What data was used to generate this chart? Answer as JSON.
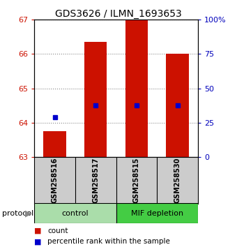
{
  "title": "GDS3626 / ILMN_1693653",
  "samples": [
    "GSM258516",
    "GSM258517",
    "GSM258515",
    "GSM258530"
  ],
  "bar_bottoms": [
    63,
    63,
    63,
    63
  ],
  "bar_tops": [
    63.75,
    66.35,
    67.0,
    66.0
  ],
  "bar_color": "#CC1100",
  "percentile_values": [
    64.15,
    64.5,
    64.5,
    64.5
  ],
  "percentile_color": "#0000CC",
  "ylim": [
    63,
    67
  ],
  "y_ticks_left": [
    63,
    64,
    65,
    66,
    67
  ],
  "y_ticks_right": [
    0,
    25,
    50,
    75,
    100
  ],
  "y_right_labels": [
    "0",
    "25",
    "50",
    "75",
    "100%"
  ],
  "left_tick_color": "#CC1100",
  "right_tick_color": "#0000BB",
  "grid_color": "#888888",
  "bg_label_row": "#cccccc",
  "bg_group_control": "#aaddaa",
  "bg_group_mif": "#44cc44",
  "legend_count_color": "#CC1100",
  "legend_percentile_color": "#0000CC",
  "bar_width": 0.55,
  "title_fontsize": 10,
  "tick_fontsize": 8,
  "sample_fontsize": 7,
  "group_fontsize": 8,
  "legend_fontsize": 7.5,
  "protocol_fontsize": 8
}
